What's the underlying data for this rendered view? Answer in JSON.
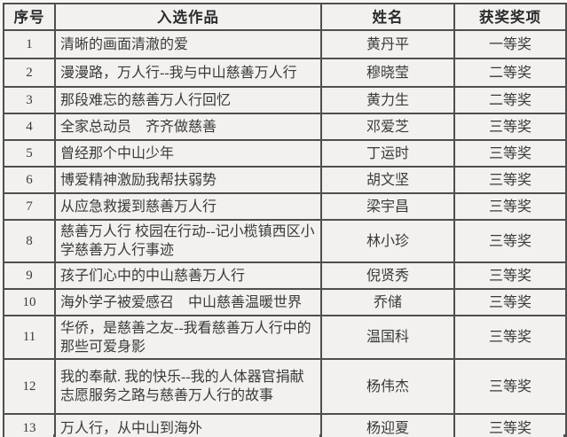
{
  "colors": {
    "border": "#4f4f4f",
    "text": "#3a3a3a",
    "header_text": "#2c2c2c",
    "cell_bg": "#f2f1ef",
    "page_bg": "#f8f7f5"
  },
  "table": {
    "headers": [
      "序号",
      "入选作品",
      "姓名",
      "获奖奖项"
    ],
    "rows": [
      {
        "no": "1",
        "work": "清晰的画面清澈的爱",
        "name": "黄丹平",
        "award": "一等奖"
      },
      {
        "no": "2",
        "work": "漫漫路，万人行--我与中山慈善万人行",
        "name": "穆晓莹",
        "award": "二等奖"
      },
      {
        "no": "3",
        "work": "那段难忘的慈善万人行回忆",
        "name": "黄力生",
        "award": "二等奖"
      },
      {
        "no": "4",
        "work": "全家总动员　齐齐做慈善",
        "name": "邓爱芝",
        "award": "三等奖"
      },
      {
        "no": "5",
        "work": "曾经那个中山少年",
        "name": "丁运时",
        "award": "三等奖"
      },
      {
        "no": "6",
        "work": "博爱精神激励我帮扶弱势",
        "name": "胡文坚",
        "award": "三等奖"
      },
      {
        "no": "7",
        "work": "从应急救援到慈善万人行",
        "name": "梁宇昌",
        "award": "三等奖"
      },
      {
        "no": "8",
        "work": "慈善万人行 校园在行动--记小榄镇西区小学慈善万人行事迹",
        "name": "林小珍",
        "award": "三等奖"
      },
      {
        "no": "9",
        "work": "孩子们心中的中山慈善万人行",
        "name": "倪贤秀",
        "award": "三等奖"
      },
      {
        "no": "10",
        "work": "海外学子被爱感召　中山慈善温暖世界",
        "name": "乔储",
        "award": "三等奖"
      },
      {
        "no": "11",
        "work": "华侨，是慈善之友--我看慈善万人行中的那些可爱身影",
        "name": "温国科",
        "award": "三等奖"
      },
      {
        "no": "12",
        "work": "我的奉献. 我的快乐--我的人体器官捐献志愿服务之路与慈善万人行的故事",
        "name": "杨伟杰",
        "award": "三等奖"
      },
      {
        "no": "13",
        "work": "万人行，从中山到海外",
        "name": "杨迎夏",
        "award": "三等奖"
      }
    ]
  }
}
